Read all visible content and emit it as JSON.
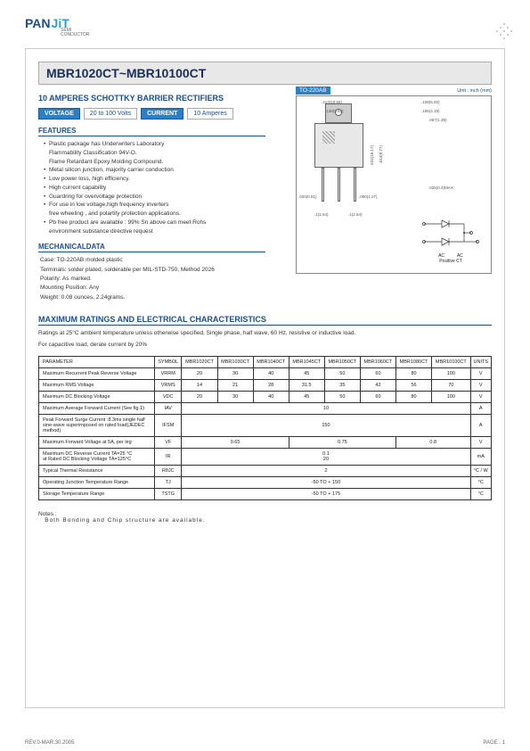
{
  "logo": {
    "pan": "PAN",
    "jit": "JiT",
    "sub1": "SEMI",
    "sub2": "CONDUCTOR"
  },
  "title": "MBR1020CT~MBR10100CT",
  "subtitle": "10 AMPERES SCHOTTKY BARRIER RECTIFIERS",
  "badges": {
    "voltage_label": "VOLTAGE",
    "voltage_val": "20 to 100 Volts",
    "current_label": "CURRENT",
    "current_val": "10 Amperes"
  },
  "features_head": "FEATURES",
  "features": [
    "Plastic package has Underwriters Laboratory",
    "Flammability Classification 94V-O.",
    "Flame Retardant Epoxy Molding Compound.",
    "Metal silicon junction, majority carrier conduction",
    "Low power loss, high efficiency.",
    "High current capability",
    "Guardring for overvoltage protection",
    "For use in low voltage,high frequency inverters",
    "free wheeling , and polartity protection applications.",
    "Pb free product are available : 99% Sn above can meet Rohs",
    "environment substance directive request"
  ],
  "mech_head": "MECHANICALDATA",
  "mech": {
    "case": "Case: TO-220AB molded plastic",
    "terminals": "Terminals: solder plated, solderable per MIL-STD-750, Method 2026",
    "polarity": "Polarity:  As marked.",
    "mounting": "Mounting Position: Any",
    "weight": "Weight: 0.08 ounces, 2.24grams."
  },
  "package": {
    "name": "TO-220AB",
    "unit": "Unit : inch (mm)",
    "pos_label": "Positive CT",
    "ac_label": "AC"
  },
  "dims": {
    "d1": ".413(10.66)",
    "d2": ".138(3.53)",
    "d3": ".108(5.00)",
    "d4": ".165(4.19)",
    "d5": ".067(1.39)",
    "d6": ".634(16.17)",
    "d7": ".044(8.77)",
    "d8": ".020(0.51)",
    "d9": ".060(1.27)",
    "d10": ".1(2.54)",
    "d11": ".1(2.54)",
    "d12": ".025(0.4)MAX"
  },
  "max_head": "MAXIMUM RATINGS AND ELECTRICAL CHARACTERISTICS",
  "max_note1": "Ratings at 25°C ambient temperature unless otherwise specified, Single phase, half wave, 60 Hz, resistive or inductive load.",
  "max_note2": "For capacitive load, derate current by 20%",
  "table": {
    "headers": [
      "PARAMETER",
      "SYMBOL",
      "MBR1020CT",
      "MBR1030CT",
      "MBR1040CT",
      "MBR1045CT",
      "MBR1050CT",
      "MBR1060CT",
      "MBR1080CT",
      "MBR10100CT",
      "UNITS"
    ],
    "rows": [
      {
        "param": "Maximum Recurrent Peak Reverse Voltage",
        "sym": "VRRM",
        "vals": [
          "20",
          "30",
          "40",
          "45",
          "50",
          "60",
          "80",
          "100"
        ],
        "unit": "V"
      },
      {
        "param": "Maximum RMS Voltage",
        "sym": "VRMS",
        "vals": [
          "14",
          "21",
          "28",
          "31.5",
          "35",
          "42",
          "56",
          "70"
        ],
        "unit": "V"
      },
      {
        "param": "Maximum DC Blocking Voltage",
        "sym": "VDC",
        "vals": [
          "20",
          "30",
          "40",
          "45",
          "50",
          "60",
          "80",
          "100"
        ],
        "unit": "V"
      },
      {
        "param": "Maximum Average Forward  Current  (See fig.1)",
        "sym": "IAV",
        "span": "10",
        "unit": "A"
      },
      {
        "param": "Peak Forward Surge Current :8.3ms single half sine-wave superimposed on rated load(JEDEC method)",
        "sym": "IFSM",
        "span": "150",
        "unit": "A"
      },
      {
        "param": "Maximum Forward Voltage at 5A, per leg",
        "sym": "VF",
        "groups": [
          {
            "span": 3,
            "val": "0.65"
          },
          {
            "span": 3,
            "val": "0.75"
          },
          {
            "span": 2,
            "val": "0.8"
          }
        ],
        "unit": "V"
      },
      {
        "param": "Maximum DC Reverse Current  TA=25 °C\nat Rated DC Blocking Voltage TA=125°C",
        "sym": "IR",
        "span": "0.1\n20",
        "unit": "mA"
      },
      {
        "param": "Typical Thermal Resistance",
        "sym": "RθJC",
        "span": "2",
        "unit": "°C / W"
      },
      {
        "param": "Operating Junction Temperature Range",
        "sym": "TJ",
        "span": "-50 TO + 150",
        "unit": "°C"
      },
      {
        "param": "Storage Temperature Range",
        "sym": "TSTG",
        "span": "-50 TO + 175",
        "unit": "°C"
      }
    ]
  },
  "notes_head": "Notes :",
  "notes_text": "Both Bonding and Chip structure are available.",
  "footer": {
    "rev": "REV.0-MAR.30.2005",
    "page": "PAGE . 1"
  }
}
